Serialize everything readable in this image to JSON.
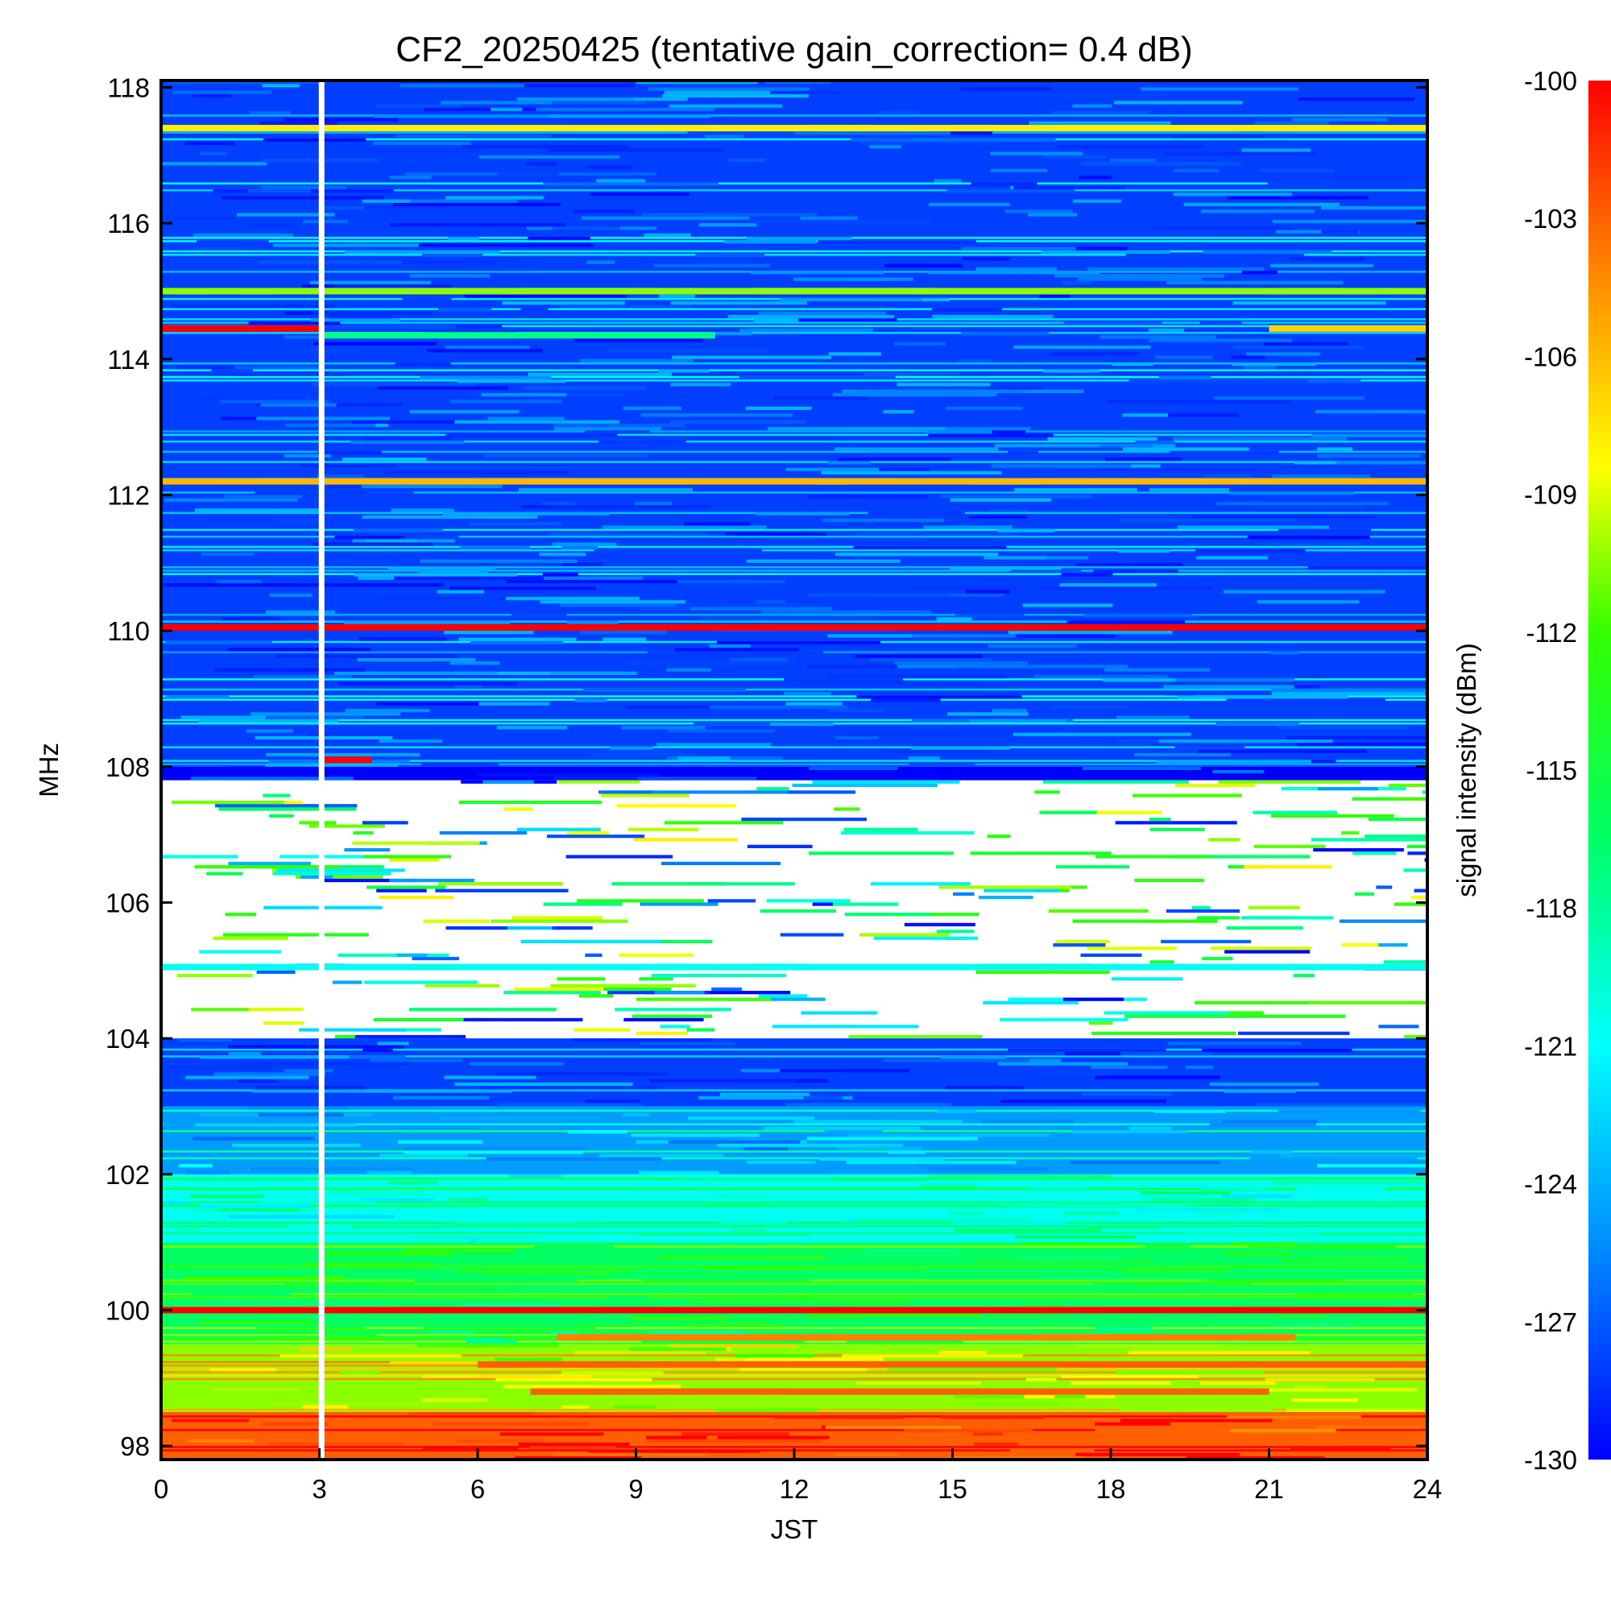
{
  "chart_data": {
    "type": "heatmap",
    "title": "CF2_20250425 (tentative gain_correction=  0.4 dB)",
    "xlabel": "JST",
    "ylabel": "MHz",
    "xlim": [
      0,
      24
    ],
    "ylim": [
      97.8,
      118.1
    ],
    "x_ticks": [
      "0",
      "3",
      "6",
      "9",
      "12",
      "15",
      "18",
      "21",
      "24"
    ],
    "y_ticks": [
      "98",
      "100",
      "102",
      "104",
      "106",
      "108",
      "110",
      "112",
      "114",
      "116",
      "118"
    ],
    "colorbar": {
      "label": "signal intensity (dBm)",
      "range": [
        -130,
        -100
      ],
      "ticks": [
        "-100",
        "-103",
        "-106",
        "-109",
        "-112",
        "-115",
        "-118",
        "-121",
        "-124",
        "-127",
        "-130"
      ],
      "colormap": [
        "#0000ff",
        "#0088ff",
        "#00ffff",
        "#00ff66",
        "#33ff00",
        "#ffff00",
        "#ff8800",
        "#ff0000"
      ]
    },
    "data_gap_time": 3.05,
    "band_intensity": [
      {
        "freq_from": 97.8,
        "freq_to": 98.5,
        "level": -103
      },
      {
        "freq_from": 98.5,
        "freq_to": 99.5,
        "level": -111
      },
      {
        "freq_from": 99.5,
        "freq_to": 101,
        "level": -117
      },
      {
        "freq_from": 101,
        "freq_to": 102,
        "level": -121
      },
      {
        "freq_from": 102,
        "freq_to": 103,
        "level": -125
      },
      {
        "freq_from": 103,
        "freq_to": 104,
        "level": -128
      },
      {
        "freq_from": 104,
        "freq_to": 107.8,
        "level": null
      },
      {
        "freq_from": 107.8,
        "freq_to": 108,
        "level": -130
      },
      {
        "freq_from": 108,
        "freq_to": 118.1,
        "level": -128
      }
    ],
    "strong_lines": [
      {
        "freq": 117.4,
        "time_from": 0,
        "time_to": 24,
        "level": -108
      },
      {
        "freq": 115.0,
        "time_from": 0,
        "time_to": 24,
        "level": -111
      },
      {
        "freq": 114.45,
        "time_from": 0,
        "time_to": 3,
        "level": -100
      },
      {
        "freq": 114.45,
        "time_from": 21,
        "time_to": 24,
        "level": -107
      },
      {
        "freq": 114.35,
        "time_from": 3,
        "time_to": 10.5,
        "level": -118
      },
      {
        "freq": 112.2,
        "time_from": 0,
        "time_to": 24,
        "level": -106
      },
      {
        "freq": 110.05,
        "time_from": 0,
        "time_to": 24,
        "level": -100
      },
      {
        "freq": 108.1,
        "time_from": 3,
        "time_to": 4,
        "level": -100
      },
      {
        "freq": 105.05,
        "time_from": 0,
        "time_to": 24,
        "level": -121
      },
      {
        "freq": 100.0,
        "time_from": 0,
        "time_to": 24,
        "level": -100
      },
      {
        "freq": 99.6,
        "time_from": 7.5,
        "time_to": 21.5,
        "level": -104
      },
      {
        "freq": 99.2,
        "time_from": 6,
        "time_to": 24,
        "level": -103
      },
      {
        "freq": 98.8,
        "time_from": 7,
        "time_to": 21,
        "level": -103
      }
    ]
  }
}
